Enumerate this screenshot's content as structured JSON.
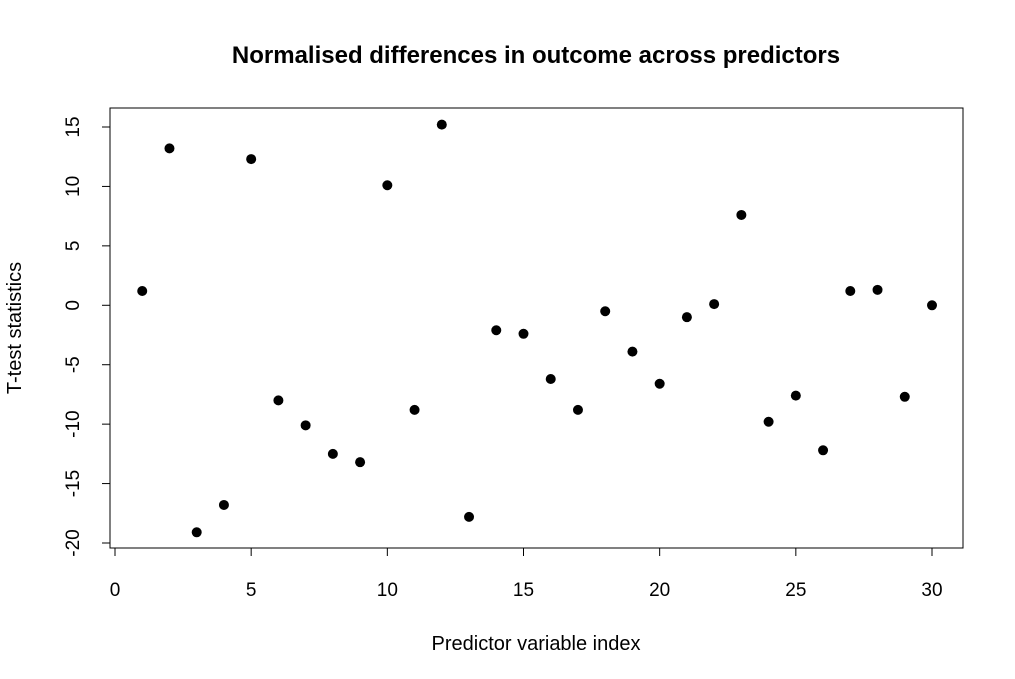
{
  "chart_data": {
    "type": "scatter",
    "title": "Normalised differences in outcome across predictors",
    "xlabel": "Predictor variable index",
    "ylabel": "T-test statistics",
    "xlim": [
      0,
      30
    ],
    "ylim": [
      -20,
      15
    ],
    "xticks": [
      0,
      5,
      10,
      15,
      20,
      25,
      30
    ],
    "yticks": [
      -20,
      -15,
      -10,
      -5,
      0,
      5,
      10,
      15
    ],
    "grid": false,
    "point_color": "#000000",
    "x": [
      1,
      2,
      3,
      4,
      5,
      6,
      7,
      8,
      9,
      10,
      11,
      12,
      13,
      14,
      15,
      16,
      17,
      18,
      19,
      20,
      21,
      22,
      23,
      24,
      25,
      26,
      27,
      28,
      29,
      30
    ],
    "y": [
      1.2,
      13.2,
      -19.1,
      -16.8,
      12.3,
      -8.0,
      -10.1,
      -12.5,
      -13.2,
      10.1,
      -8.8,
      15.2,
      -17.8,
      -2.1,
      -2.4,
      -6.2,
      -8.8,
      -0.5,
      -3.9,
      -6.6,
      -1.0,
      0.1,
      7.6,
      -9.8,
      -7.6,
      -12.2,
      1.2,
      1.3,
      -7.7,
      0.0
    ]
  }
}
